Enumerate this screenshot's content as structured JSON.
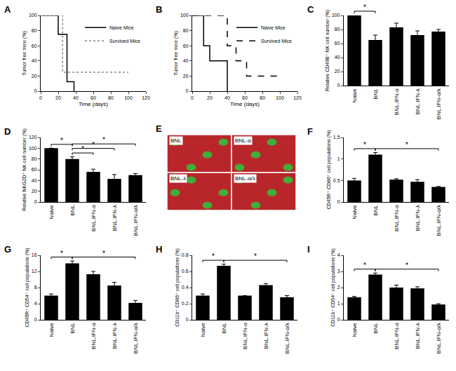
{
  "chart_data": [
    {
      "type": "line",
      "title": "A",
      "x_label": "Time (days)",
      "y_label": "Tumor free mice (%)",
      "xlim": [
        0,
        120
      ],
      "xticks": [
        0,
        20,
        40,
        60,
        80,
        100,
        120
      ],
      "ylim": [
        0,
        100
      ],
      "yticks": [
        0,
        20,
        40,
        60,
        80,
        100
      ],
      "grid": false,
      "legend": "top right",
      "series": [
        {
          "name": "Naive Mice",
          "color": "#000000",
          "line_style": "solid",
          "x": [
            0,
            20,
            30,
            38
          ],
          "values": [
            100,
            75,
            12.5,
            0
          ]
        },
        {
          "name": "Survived Mice",
          "color": "#888888",
          "line_style": "dot",
          "x": [
            0,
            25,
            100
          ],
          "values": [
            100,
            25,
            25
          ]
        }
      ]
    },
    {
      "type": "line",
      "title": "B",
      "x_label": "Time (days)",
      "y_label": "Tumor free mice (%)",
      "xlim": [
        0,
        120
      ],
      "xticks": [
        0,
        20,
        40,
        60,
        80,
        100,
        120
      ],
      "ylim": [
        0,
        100
      ],
      "yticks": [
        0,
        20,
        40,
        60,
        80,
        100
      ],
      "grid": false,
      "legend": "top right",
      "series": [
        {
          "name": "Naive Mice",
          "color": "#000000",
          "line_style": "solid",
          "x": [
            0,
            13,
            20,
            40
          ],
          "values": [
            100,
            60,
            40,
            0
          ]
        },
        {
          "name": "Survived Mice",
          "color": "#000000",
          "line_style": "dash",
          "x": [
            0,
            40,
            50,
            62,
            100
          ],
          "values": [
            100,
            60,
            40,
            20,
            20
          ]
        }
      ]
    },
    {
      "type": "bar",
      "title": "C",
      "y_label": "Relative CD49B⁺ NK cell number (%)",
      "categories": [
        "Naive",
        "BNL",
        "BNL.IFN-α",
        "BNL.IFN-λ",
        "BNL.IFN-α/λ"
      ],
      "values": [
        100,
        65,
        83,
        72,
        77
      ],
      "errors": [
        0,
        7,
        6,
        6,
        3
      ],
      "color": "#000000",
      "ylim": [
        0,
        100
      ],
      "yticks": [
        0,
        20,
        40,
        60,
        80,
        100
      ],
      "grid": false,
      "significance": [
        {
          "from": "Naive",
          "to": "BNL",
          "label": "*"
        }
      ]
    },
    {
      "type": "bar",
      "title": "D",
      "y_label": "Relative NKG2D⁺ NK cell number (%)",
      "categories": [
        "Naive",
        "BNL",
        "BNL.IFN-α",
        "BNL.IFN-λ",
        "BNL.IFN-α/λ"
      ],
      "values": [
        100,
        80,
        56,
        43,
        50
      ],
      "errors": [
        0,
        4,
        5,
        8,
        3
      ],
      "color": "#000000",
      "ylim": [
        0,
        120
      ],
      "yticks": [
        0,
        20,
        40,
        60,
        80,
        100,
        120
      ],
      "grid": false,
      "significance": [
        {
          "from": "Naive",
          "to": "BNL",
          "label": "*"
        },
        {
          "from": "BNL",
          "to": "BNL.IFN-α",
          "label": "*"
        },
        {
          "from": "BNL",
          "to": "BNL.IFN-λ",
          "label": "*"
        },
        {
          "from": "BNL",
          "to": "BNL.IFN-α/λ",
          "label": "*"
        }
      ]
    },
    {
      "type": "image",
      "title": "E",
      "labels": [
        "BNL",
        "BNL-α",
        "BNL-λ",
        "BNL-α/λ"
      ]
    },
    {
      "type": "bar",
      "title": "F",
      "y_label": "CD45R⁺ CD86⁺ cell populations (%)",
      "categories": [
        "Naive",
        "BNL",
        "BNL.IFN-α",
        "BNL.IFN-λ",
        "BNL.IFN-α/λ"
      ],
      "values": [
        0.5,
        1.1,
        0.52,
        0.47,
        0.35
      ],
      "errors": [
        0.05,
        0.05,
        0.02,
        0.05,
        0.01
      ],
      "color": "#000000",
      "ylim": [
        0,
        1.5
      ],
      "yticks": [
        0,
        0.5,
        1,
        1.5
      ],
      "grid": false,
      "significance": [
        {
          "from": "Naive",
          "to": "BNL",
          "label": "*"
        },
        {
          "from": "BNL",
          "to": "BNL.IFN-α/λ",
          "label": "*"
        }
      ]
    },
    {
      "type": "bar",
      "title": "G",
      "y_label": "CD45R⁺ CD54⁺ cell populations (%)",
      "categories": [
        "Naive",
        "BNL",
        "BNL.IFN-α",
        "BNL.IFN-λ",
        "BNL.IFN-α/λ"
      ],
      "values": [
        6,
        14,
        11.3,
        8.5,
        4.2
      ],
      "errors": [
        0.4,
        0.6,
        0.7,
        0.8,
        0.6
      ],
      "color": "#000000",
      "ylim": [
        0,
        16
      ],
      "yticks": [
        0,
        4,
        8,
        12,
        16
      ],
      "grid": false,
      "significance": [
        {
          "from": "Naive",
          "to": "BNL",
          "label": "*"
        },
        {
          "from": "BNL",
          "to": "BNL.IFN-α/λ",
          "label": "*"
        }
      ]
    },
    {
      "type": "bar",
      "title": "H",
      "y_label": "CD11b⁺ CD86⁺ cell populations (%)",
      "categories": [
        "Naive",
        "BNL",
        "BNL.IFN-α",
        "BNL.IFN-λ",
        "BNL.IFN-α/λ"
      ],
      "values": [
        0.3,
        0.67,
        0.3,
        0.43,
        0.28
      ],
      "errors": [
        0.02,
        0.02,
        0,
        0.02,
        0.02
      ],
      "color": "#000000",
      "ylim": [
        0,
        0.8
      ],
      "yticks": [
        0,
        0.2,
        0.4,
        0.6,
        0.8
      ],
      "grid": false,
      "significance": [
        {
          "from": "Naive",
          "to": "BNL",
          "label": "*"
        },
        {
          "from": "BNL",
          "to": "BNL.IFN-α/λ",
          "label": "*"
        }
      ]
    },
    {
      "type": "bar",
      "title": "I",
      "y_label": "CD11b⁺ CD54⁺ cell populations (%)",
      "categories": [
        "Naive",
        "BNL",
        "BNL.IFN-α",
        "BNL.IFN-λ",
        "BNL.IFN-α/λ"
      ],
      "values": [
        1.4,
        2.8,
        2.0,
        1.95,
        0.95
      ],
      "errors": [
        0.05,
        0.1,
        0.15,
        0.1,
        0.05
      ],
      "color": "#000000",
      "ylim": [
        0,
        4
      ],
      "yticks": [
        0,
        1,
        2,
        3,
        4
      ],
      "grid": false,
      "significance": [
        {
          "from": "Naive",
          "to": "BNL",
          "label": "*"
        },
        {
          "from": "BNL",
          "to": "BNL.IFN-α/λ",
          "label": "*"
        }
      ]
    }
  ]
}
